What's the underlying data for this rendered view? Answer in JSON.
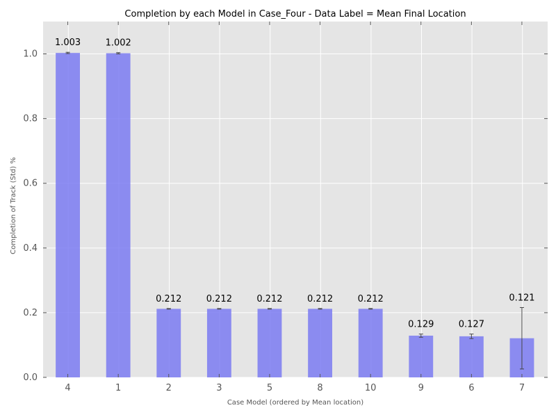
{
  "chart_data": {
    "type": "bar",
    "title": "Completion by each Model in Case_Four - Data Label = Mean Final Location",
    "xlabel": "Case Model (ordered by Mean location)",
    "ylabel": "Completion of Track (Std) %",
    "ylim": [
      0.0,
      1.1
    ],
    "yticks": [
      "0.0",
      "0.2",
      "0.4",
      "0.6",
      "0.8",
      "1.0"
    ],
    "grid": true,
    "categories": [
      "4",
      "1",
      "2",
      "3",
      "5",
      "8",
      "10",
      "9",
      "6",
      "7"
    ],
    "values": [
      1.003,
      1.002,
      0.212,
      0.212,
      0.212,
      0.212,
      0.212,
      0.129,
      0.127,
      0.121
    ],
    "error": [
      0.002,
      0.002,
      0.001,
      0.001,
      0.001,
      0.001,
      0.001,
      0.005,
      0.007,
      0.095
    ],
    "data_labels": [
      "1.003",
      "1.002",
      "0.212",
      "0.212",
      "0.212",
      "0.212",
      "0.212",
      "0.129",
      "0.127",
      "0.121"
    ],
    "colors": {
      "bar": "#7b7bf2",
      "background": "#e5e5e5",
      "grid": "#ffffff"
    }
  }
}
